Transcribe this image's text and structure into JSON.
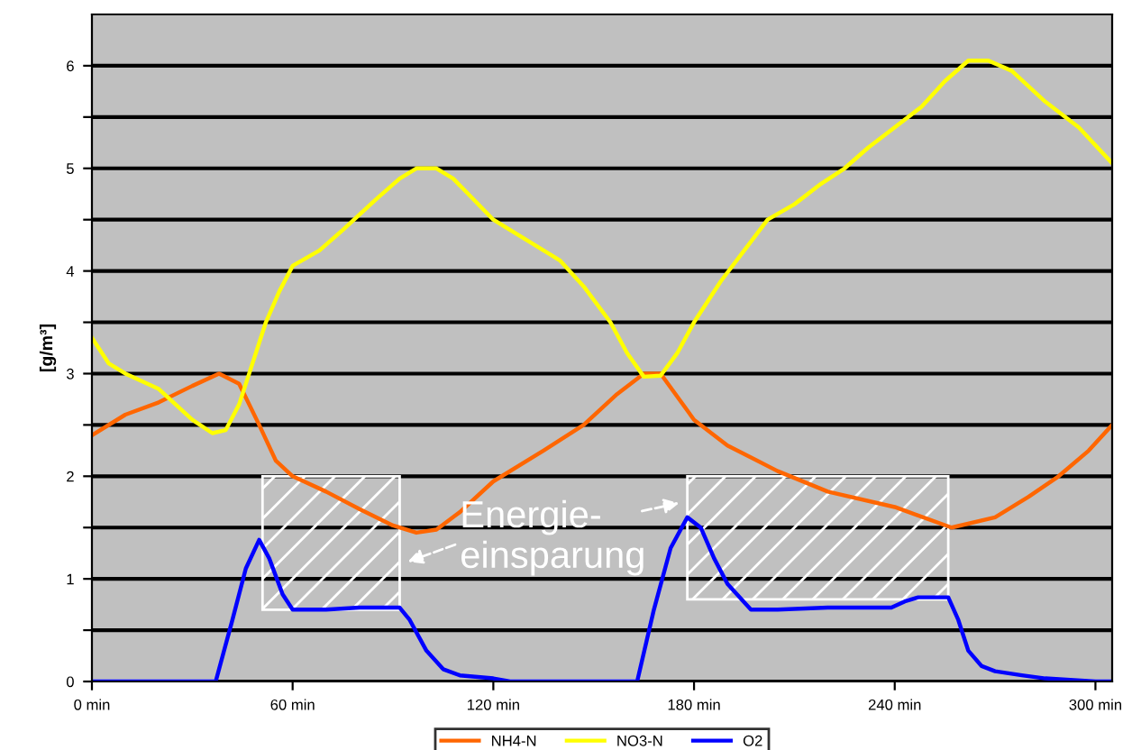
{
  "chart_data": {
    "type": "line",
    "ylabel": "[g/m³]",
    "xlim": [
      0,
      305
    ],
    "ylim": [
      0,
      6.5
    ],
    "xticks": [
      {
        "value": 0,
        "label": "0 min"
      },
      {
        "value": 60,
        "label": "60 min"
      },
      {
        "value": 120,
        "label": "120 min"
      },
      {
        "value": 180,
        "label": "180 min"
      },
      {
        "value": 240,
        "label": "240 min"
      },
      {
        "value": 300,
        "label": "300 min"
      }
    ],
    "yticks": [
      0,
      {
        "value": 0.5,
        "label": null
      },
      1,
      {
        "value": 1.5,
        "label": null
      },
      2,
      {
        "value": 2.5,
        "label": null
      },
      3,
      {
        "value": 3.5,
        "label": null
      },
      4,
      {
        "value": 4.5,
        "label": null
      },
      5,
      {
        "value": 5.5,
        "label": null
      },
      6
    ],
    "grid": "y",
    "legend": "bottom",
    "marker": "none",
    "line_style": "solid",
    "series": [
      {
        "name": "NH4-N",
        "color": "#ff6600",
        "x": [
          0,
          10,
          20,
          30,
          38,
          44,
          50,
          55,
          60,
          70,
          80,
          90,
          97,
          103,
          110,
          120,
          135,
          147,
          157,
          165,
          170,
          180,
          190,
          205,
          220,
          240,
          257,
          270,
          280,
          289,
          298,
          305
        ],
        "values": [
          2.4,
          2.6,
          2.72,
          2.88,
          3.0,
          2.9,
          2.5,
          2.15,
          2.0,
          1.85,
          1.68,
          1.52,
          1.45,
          1.48,
          1.65,
          1.95,
          2.25,
          2.5,
          2.8,
          3.0,
          3.0,
          2.55,
          2.3,
          2.05,
          1.85,
          1.7,
          1.5,
          1.6,
          1.8,
          2.0,
          2.25,
          2.5
        ]
      },
      {
        "name": "NO3-N",
        "color": "#ffff00",
        "x": [
          0,
          5,
          10,
          20,
          30,
          36,
          40,
          44,
          48,
          52,
          56,
          60,
          68,
          75,
          85,
          92,
          97,
          103,
          108,
          120,
          130,
          140,
          147,
          155,
          160,
          165,
          170,
          175,
          180,
          188,
          195,
          202,
          210,
          218,
          225,
          232,
          240,
          248,
          255,
          262,
          268,
          275,
          285,
          295,
          305
        ],
        "values": [
          3.35,
          3.1,
          3.0,
          2.85,
          2.55,
          2.42,
          2.45,
          2.7,
          3.1,
          3.5,
          3.8,
          4.05,
          4.2,
          4.4,
          4.7,
          4.9,
          5.0,
          5.0,
          4.9,
          4.5,
          4.3,
          4.1,
          3.85,
          3.5,
          3.2,
          2.97,
          2.98,
          3.2,
          3.5,
          3.9,
          4.2,
          4.5,
          4.65,
          4.85,
          5.0,
          5.2,
          5.4,
          5.6,
          5.85,
          6.05,
          6.05,
          5.95,
          5.65,
          5.4,
          5.05
        ]
      },
      {
        "name": "O2",
        "color": "#0000ff",
        "x": [
          0,
          37,
          42,
          46,
          50,
          53,
          57,
          60,
          70,
          80,
          92,
          95,
          100,
          105,
          110,
          120,
          125,
          163,
          168,
          173,
          178,
          182,
          186,
          190,
          197,
          205,
          220,
          239,
          243,
          247,
          256,
          259,
          262,
          266,
          270,
          278,
          285,
          300,
          305
        ],
        "values": [
          0,
          0,
          0.6,
          1.1,
          1.38,
          1.2,
          0.85,
          0.7,
          0.7,
          0.72,
          0.72,
          0.6,
          0.3,
          0.12,
          0.06,
          0.03,
          0,
          0,
          0.7,
          1.3,
          1.6,
          1.5,
          1.2,
          0.95,
          0.7,
          0.7,
          0.72,
          0.72,
          0.78,
          0.82,
          0.82,
          0.6,
          0.3,
          0.15,
          0.1,
          0.06,
          0.03,
          0,
          0
        ]
      }
    ],
    "annotations": [
      "Energie-\neinsparung"
    ]
  }
}
